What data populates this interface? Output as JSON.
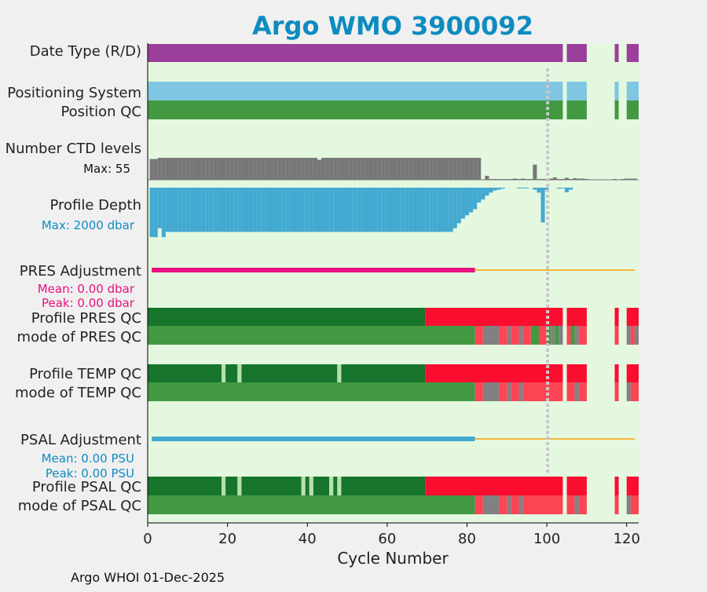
{
  "chart_data": {
    "type": "bar",
    "title": "Argo WMO 3900092",
    "xlabel": "Cycle Number",
    "xlim": [
      0,
      123
    ],
    "x_ticks": [
      "0",
      "20",
      "40",
      "60",
      "80",
      "100",
      "120"
    ],
    "footer": "Argo WHOI 01-Dec-2025",
    "reference_line_cycle": 100,
    "rows": {
      "date_type": "Date Type (R/D)",
      "positioning": "Positioning System",
      "position_qc": "Position QC",
      "ctd_levels": "Number CTD levels",
      "profile_depth": "Profile Depth",
      "pres_adj": "PRES Adjustment",
      "profile_pres_qc": "Profile PRES QC",
      "mode_pres_qc": "mode of PRES QC",
      "profile_temp_qc": "Profile TEMP QC",
      "mode_temp_qc": "mode of TEMP QC",
      "psal_adj": "PSAL Adjustment",
      "profile_psal_qc": "Profile PSAL QC",
      "mode_psal_qc": "mode of PSAL QC"
    },
    "annotations": {
      "ctd_max": "Max: 55",
      "depth_max": "Max: 2000 dbar",
      "pres_mean": "Mean: 0.00 dbar",
      "pres_peak": "Peak: 0.00 dbar",
      "psal_mean": "Mean: 0.00 PSU",
      "psal_peak": "Peak: 0.00 PSU"
    },
    "colors": {
      "background": "#e4f8e0",
      "date_type": "#9b3f9b",
      "positioning": "#7fc6e0",
      "position_qc": "#429942",
      "ctd": "#777777",
      "depth": "#43a9d0",
      "pres_adj": "#e8117f",
      "psal_adj": "#43a9d0",
      "adj_tail": "#f5b63a",
      "qc_good_dark": "#16752b",
      "qc_good": "#429942",
      "qc_bad": "#fb0d2f",
      "qc_bad_light": "#fc4454",
      "qc_gray": "#818181",
      "qc_gap": "#b8dfb0",
      "ref_line": "#c8c8c8",
      "title": "#0d8cc0",
      "pres_text": "#e8117f",
      "psal_text": "#0d8cc0"
    },
    "series": {
      "date_type": [
        [
          0,
          104,
          "date_type"
        ],
        [
          105,
          110,
          "date_type"
        ],
        [
          117,
          118,
          "date_type"
        ],
        [
          120,
          123,
          "date_type"
        ]
      ],
      "positioning": [
        [
          0,
          104,
          "positioning"
        ],
        [
          105,
          110,
          "positioning"
        ],
        [
          117,
          118,
          "positioning"
        ],
        [
          120,
          123,
          "positioning"
        ]
      ],
      "position_qc": [
        [
          0,
          104,
          "qc_good"
        ],
        [
          105,
          110,
          "qc_good"
        ],
        [
          117,
          118,
          "qc_good"
        ],
        [
          120,
          123,
          "qc_good"
        ]
      ],
      "ctd_levels": [
        [
          1,
          52
        ],
        [
          2,
          52
        ],
        [
          3,
          55
        ],
        [
          4,
          55
        ],
        [
          5,
          55
        ],
        [
          6,
          55
        ],
        [
          7,
          55
        ],
        [
          8,
          55
        ],
        [
          9,
          55
        ],
        [
          10,
          55
        ],
        [
          11,
          55
        ],
        [
          12,
          55
        ],
        [
          13,
          55
        ],
        [
          14,
          55
        ],
        [
          15,
          55
        ],
        [
          16,
          55
        ],
        [
          17,
          55
        ],
        [
          18,
          55
        ],
        [
          19,
          55
        ],
        [
          20,
          55
        ],
        [
          21,
          55
        ],
        [
          22,
          55
        ],
        [
          23,
          55
        ],
        [
          24,
          55
        ],
        [
          25,
          55
        ],
        [
          26,
          55
        ],
        [
          27,
          55
        ],
        [
          28,
          55
        ],
        [
          29,
          55
        ],
        [
          30,
          55
        ],
        [
          31,
          55
        ],
        [
          32,
          55
        ],
        [
          33,
          55
        ],
        [
          34,
          55
        ],
        [
          35,
          55
        ],
        [
          36,
          55
        ],
        [
          37,
          55
        ],
        [
          38,
          55
        ],
        [
          39,
          55
        ],
        [
          40,
          55
        ],
        [
          41,
          55
        ],
        [
          42,
          55
        ],
        [
          43,
          50
        ],
        [
          44,
          55
        ],
        [
          45,
          55
        ],
        [
          46,
          55
        ],
        [
          47,
          55
        ],
        [
          48,
          55
        ],
        [
          49,
          55
        ],
        [
          50,
          55
        ],
        [
          51,
          55
        ],
        [
          52,
          55
        ],
        [
          53,
          55
        ],
        [
          54,
          55
        ],
        [
          55,
          55
        ],
        [
          56,
          55
        ],
        [
          57,
          55
        ],
        [
          58,
          55
        ],
        [
          59,
          55
        ],
        [
          60,
          55
        ],
        [
          61,
          55
        ],
        [
          62,
          55
        ],
        [
          63,
          55
        ],
        [
          64,
          55
        ],
        [
          65,
          55
        ],
        [
          66,
          55
        ],
        [
          67,
          55
        ],
        [
          68,
          55
        ],
        [
          69,
          55
        ],
        [
          70,
          55
        ],
        [
          71,
          55
        ],
        [
          72,
          55
        ],
        [
          73,
          55
        ],
        [
          74,
          55
        ],
        [
          75,
          55
        ],
        [
          76,
          55
        ],
        [
          77,
          55
        ],
        [
          78,
          55
        ],
        [
          79,
          55
        ],
        [
          80,
          55
        ],
        [
          81,
          55
        ],
        [
          82,
          55
        ],
        [
          83,
          55
        ],
        [
          85,
          10
        ],
        [
          86,
          2
        ],
        [
          87,
          2
        ],
        [
          88,
          2
        ],
        [
          89,
          2
        ],
        [
          90,
          2
        ],
        [
          91,
          2
        ],
        [
          92,
          3
        ],
        [
          93,
          2
        ],
        [
          94,
          3
        ],
        [
          95,
          2
        ],
        [
          96,
          2
        ],
        [
          97,
          38
        ],
        [
          98,
          2
        ],
        [
          99,
          2
        ],
        [
          100,
          2
        ],
        [
          101,
          3
        ],
        [
          102,
          6
        ],
        [
          103,
          2
        ],
        [
          104,
          2
        ],
        [
          105,
          5
        ],
        [
          106,
          2
        ],
        [
          107,
          4
        ],
        [
          108,
          3
        ],
        [
          109,
          3
        ],
        [
          110,
          2
        ],
        [
          117,
          2
        ],
        [
          119,
          2
        ],
        [
          120,
          3
        ],
        [
          121,
          3
        ],
        [
          122,
          3
        ]
      ],
      "profile_depth": [
        [
          1,
          2000
        ],
        [
          2,
          2000
        ],
        [
          3,
          1640
        ],
        [
          4,
          2000
        ],
        [
          5,
          1790
        ],
        [
          6,
          1790
        ],
        [
          7,
          1790
        ],
        [
          8,
          1790
        ],
        [
          9,
          1790
        ],
        [
          10,
          1790
        ],
        [
          11,
          1790
        ],
        [
          12,
          1790
        ],
        [
          13,
          1790
        ],
        [
          14,
          1790
        ],
        [
          15,
          1790
        ],
        [
          16,
          1790
        ],
        [
          17,
          1790
        ],
        [
          18,
          1790
        ],
        [
          19,
          1790
        ],
        [
          20,
          1790
        ],
        [
          21,
          1790
        ],
        [
          22,
          1790
        ],
        [
          23,
          1790
        ],
        [
          24,
          1790
        ],
        [
          25,
          1790
        ],
        [
          26,
          1790
        ],
        [
          27,
          1790
        ],
        [
          28,
          1790
        ],
        [
          29,
          1790
        ],
        [
          30,
          1790
        ],
        [
          31,
          1790
        ],
        [
          32,
          1790
        ],
        [
          33,
          1790
        ],
        [
          34,
          1790
        ],
        [
          35,
          1790
        ],
        [
          36,
          1790
        ],
        [
          37,
          1790
        ],
        [
          38,
          1790
        ],
        [
          39,
          1790
        ],
        [
          40,
          1790
        ],
        [
          41,
          1790
        ],
        [
          42,
          1790
        ],
        [
          43,
          1790
        ],
        [
          44,
          1790
        ],
        [
          45,
          1790
        ],
        [
          46,
          1790
        ],
        [
          47,
          1790
        ],
        [
          48,
          1790
        ],
        [
          49,
          1790
        ],
        [
          50,
          1790
        ],
        [
          51,
          1790
        ],
        [
          52,
          1790
        ],
        [
          53,
          1790
        ],
        [
          54,
          1790
        ],
        [
          55,
          1790
        ],
        [
          56,
          1790
        ],
        [
          57,
          1790
        ],
        [
          58,
          1790
        ],
        [
          59,
          1790
        ],
        [
          60,
          1790
        ],
        [
          61,
          1790
        ],
        [
          62,
          1790
        ],
        [
          63,
          1790
        ],
        [
          64,
          1790
        ],
        [
          65,
          1790
        ],
        [
          66,
          1790
        ],
        [
          67,
          1790
        ],
        [
          68,
          1790
        ],
        [
          69,
          1790
        ],
        [
          70,
          1790
        ],
        [
          71,
          1790
        ],
        [
          72,
          1790
        ],
        [
          73,
          1790
        ],
        [
          74,
          1790
        ],
        [
          75,
          1790
        ],
        [
          76,
          1790
        ],
        [
          77,
          1640
        ],
        [
          78,
          1440
        ],
        [
          79,
          1250
        ],
        [
          80,
          1120
        ],
        [
          81,
          1000
        ],
        [
          82,
          870
        ],
        [
          83,
          600
        ],
        [
          84,
          480
        ],
        [
          85,
          320
        ],
        [
          86,
          200
        ],
        [
          87,
          120
        ],
        [
          88,
          80
        ],
        [
          89,
          40
        ],
        [
          93,
          10
        ],
        [
          94,
          10
        ],
        [
          95,
          10
        ],
        [
          97,
          80
        ],
        [
          98,
          200
        ],
        [
          99,
          1410
        ],
        [
          100,
          110
        ],
        [
          103,
          40
        ],
        [
          104,
          10
        ],
        [
          105,
          190
        ],
        [
          106,
          80
        ]
      ],
      "pres_adj": [
        [
          1,
          82,
          "pres_adj"
        ],
        [
          82,
          122,
          "adj_tail"
        ]
      ],
      "psal_adj": [
        [
          1,
          82,
          "psal_adj"
        ],
        [
          82,
          122,
          "adj_tail"
        ]
      ],
      "profile_pres_qc": [
        [
          0,
          69.5,
          "qc_good_dark"
        ],
        [
          69.5,
          104,
          "qc_bad"
        ],
        [
          105,
          110,
          "qc_bad"
        ],
        [
          117,
          118,
          "qc_bad"
        ],
        [
          120,
          123,
          "qc_bad"
        ]
      ],
      "mode_pres_qc": [
        [
          0,
          82,
          "qc_good"
        ],
        [
          82,
          84,
          "qc_bad_light"
        ],
        [
          84,
          88,
          "qc_gray"
        ],
        [
          88,
          90,
          "qc_bad_light"
        ],
        [
          90,
          91,
          "qc_gray"
        ],
        [
          91,
          93,
          "qc_bad_light"
        ],
        [
          93,
          94,
          "qc_gray"
        ],
        [
          94,
          96,
          "qc_bad_light"
        ],
        [
          96,
          98,
          "qc_good"
        ],
        [
          98,
          100,
          "qc_bad_light"
        ],
        [
          100,
          101,
          "qc_good"
        ],
        [
          101,
          102,
          "qc_gray"
        ],
        [
          102,
          103,
          "qc_good"
        ],
        [
          103,
          104,
          "qc_gray"
        ],
        [
          105,
          106,
          "qc_bad_light"
        ],
        [
          106,
          107,
          "qc_good"
        ],
        [
          107,
          108,
          "qc_gray"
        ],
        [
          108,
          110,
          "qc_bad_light"
        ],
        [
          117,
          118,
          "qc_bad_light"
        ],
        [
          120,
          121,
          "qc_gray"
        ],
        [
          121,
          122,
          "qc_bad_light"
        ],
        [
          122,
          123,
          "qc_gray"
        ]
      ],
      "profile_temp_qc": [
        [
          0,
          18.5,
          "qc_good_dark"
        ],
        [
          18.5,
          19.5,
          "qc_gap"
        ],
        [
          19.5,
          22.5,
          "qc_good_dark"
        ],
        [
          22.5,
          23.5,
          "qc_gap"
        ],
        [
          23.5,
          47.5,
          "qc_good_dark"
        ],
        [
          47.5,
          48.5,
          "qc_gap"
        ],
        [
          48.5,
          69.5,
          "qc_good_dark"
        ],
        [
          69.5,
          104,
          "qc_bad"
        ],
        [
          105,
          110,
          "qc_bad"
        ],
        [
          117,
          118,
          "qc_bad"
        ],
        [
          120,
          123,
          "qc_bad"
        ]
      ],
      "mode_temp_qc": [
        [
          0,
          82,
          "qc_good"
        ],
        [
          82,
          84,
          "qc_bad_light"
        ],
        [
          84,
          88,
          "qc_gray"
        ],
        [
          88,
          90,
          "qc_bad_light"
        ],
        [
          90,
          91,
          "qc_gray"
        ],
        [
          91,
          93,
          "qc_bad_light"
        ],
        [
          93,
          94,
          "qc_gray"
        ],
        [
          94,
          104,
          "qc_bad_light"
        ],
        [
          105,
          107,
          "qc_bad_light"
        ],
        [
          107,
          108,
          "qc_gray"
        ],
        [
          108,
          110,
          "qc_bad_light"
        ],
        [
          117,
          118,
          "qc_bad_light"
        ],
        [
          120,
          121,
          "qc_gray"
        ],
        [
          121,
          123,
          "qc_bad_light"
        ]
      ],
      "profile_psal_qc": [
        [
          0,
          18.5,
          "qc_good_dark"
        ],
        [
          18.5,
          19.5,
          "qc_gap"
        ],
        [
          19.5,
          22.5,
          "qc_good_dark"
        ],
        [
          22.5,
          23.5,
          "qc_gap"
        ],
        [
          23.5,
          38.5,
          "qc_good_dark"
        ],
        [
          38.5,
          39.5,
          "qc_gap"
        ],
        [
          39.5,
          40.5,
          "qc_good_dark"
        ],
        [
          40.5,
          41.5,
          "qc_gap"
        ],
        [
          41.5,
          45.5,
          "qc_good_dark"
        ],
        [
          45.5,
          46.5,
          "qc_gap"
        ],
        [
          46.5,
          47.5,
          "qc_good_dark"
        ],
        [
          47.5,
          48.5,
          "qc_gap"
        ],
        [
          48.5,
          69.5,
          "qc_good_dark"
        ],
        [
          69.5,
          104,
          "qc_bad"
        ],
        [
          105,
          110,
          "qc_bad"
        ],
        [
          117,
          118,
          "qc_bad"
        ],
        [
          120,
          123,
          "qc_bad"
        ]
      ],
      "mode_psal_qc": [
        [
          0,
          82,
          "qc_good"
        ],
        [
          82,
          84,
          "qc_bad_light"
        ],
        [
          84,
          88,
          "qc_gray"
        ],
        [
          88,
          90,
          "qc_bad_light"
        ],
        [
          90,
          91,
          "qc_gray"
        ],
        [
          91,
          93,
          "qc_bad_light"
        ],
        [
          93,
          94,
          "qc_gray"
        ],
        [
          94,
          104,
          "qc_bad_light"
        ],
        [
          105,
          107,
          "qc_bad_light"
        ],
        [
          107,
          108,
          "qc_gray"
        ],
        [
          108,
          110,
          "qc_bad_light"
        ],
        [
          117,
          118,
          "qc_bad_light"
        ],
        [
          120,
          121,
          "qc_gray"
        ],
        [
          121,
          123,
          "qc_bad_light"
        ]
      ]
    }
  }
}
